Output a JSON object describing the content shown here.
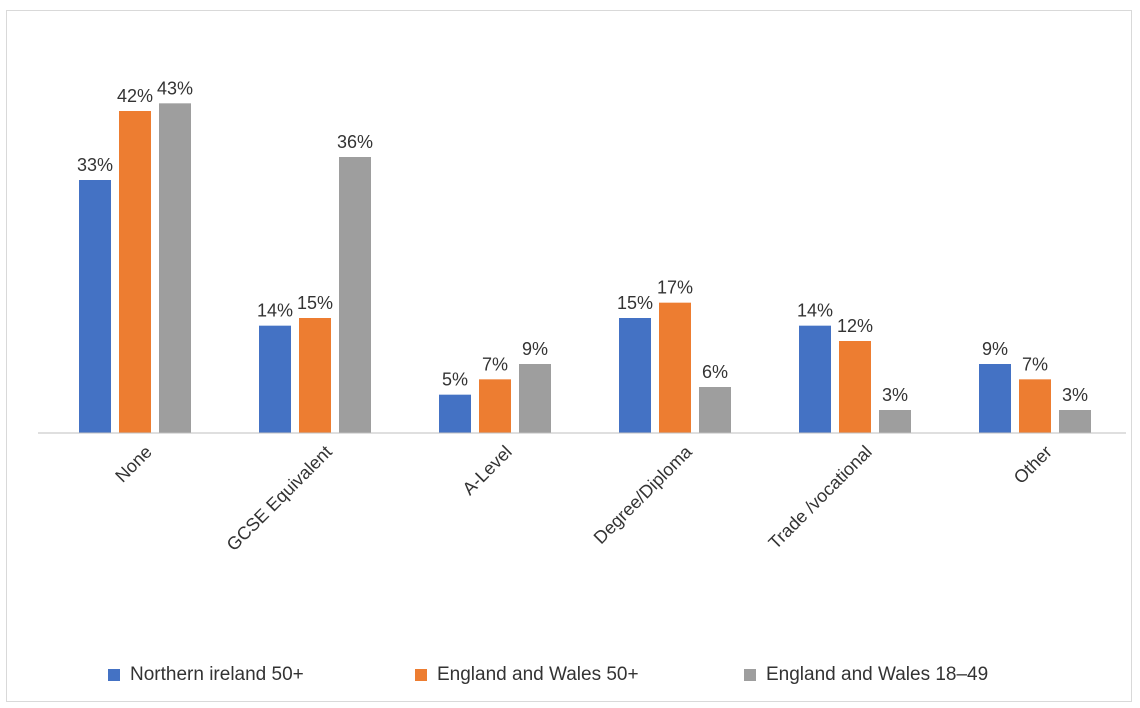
{
  "chart_data": {
    "type": "bar",
    "categories": [
      "None",
      "GCSE Equivalent",
      "A-Level",
      "Degree/Diploma",
      "Trade /vocational",
      "Other"
    ],
    "series": [
      {
        "name": "Northern ireland 50+",
        "color": "#4472c4",
        "values": [
          33,
          14,
          5,
          15,
          14,
          9
        ],
        "labels": [
          "33%",
          "14%",
          "5%",
          "15%",
          "14%",
          "9%"
        ]
      },
      {
        "name": "England and Wales 50+",
        "color": "#ed7d31",
        "values": [
          42,
          15,
          7,
          17,
          12,
          7
        ],
        "labels": [
          "42%",
          "15%",
          "7%",
          "17%",
          "12%",
          "7%"
        ]
      },
      {
        "name": "England and Wales 18–49",
        "color": "#9e9e9e",
        "values": [
          43,
          36,
          9,
          6,
          3,
          3
        ],
        "labels": [
          "43%",
          "36%",
          "9%",
          "6%",
          "3%",
          "3%"
        ]
      }
    ],
    "ylim": [
      0,
      45
    ],
    "legend_position": "bottom",
    "grid": false
  }
}
